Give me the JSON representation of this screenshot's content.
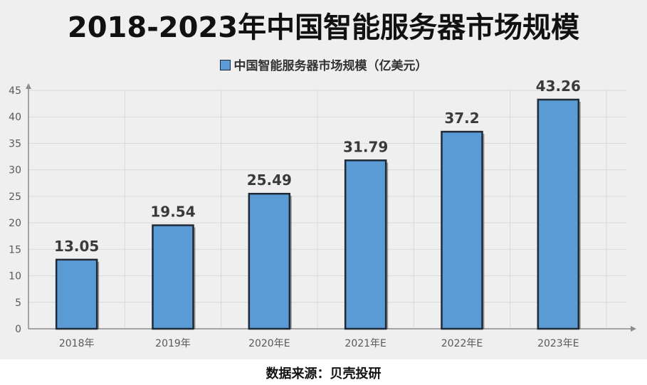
{
  "title": "2018-2023年中国智能服务器市场规模",
  "source": "数据来源：贝壳投研",
  "colors": {
    "bar": "#5b9bd5",
    "bar_border": "#1f2a36",
    "grid": "#d9d9d9",
    "background": "#efefef"
  },
  "chart_data": {
    "type": "bar",
    "title": "2018-2023年中国智能服务器市场规模",
    "categories": [
      "2018年",
      "2019年",
      "2020年E",
      "2021年E",
      "2022年E",
      "2023年E"
    ],
    "series": [
      {
        "name": "中国智能服务器市场规模（亿美元）",
        "values": [
          13.05,
          19.54,
          25.49,
          31.79,
          37.2,
          43.26
        ]
      }
    ],
    "value_labels": [
      "13.05",
      "19.54",
      "25.49",
      "31.79",
      "37.2",
      "43.26"
    ],
    "yticks": [
      "0",
      "5",
      "10",
      "15",
      "20",
      "25",
      "30",
      "35",
      "40",
      "45"
    ],
    "ylim": [
      0,
      45
    ],
    "grid": true,
    "legend_position": "top-center",
    "xlabel": "",
    "ylabel": ""
  }
}
